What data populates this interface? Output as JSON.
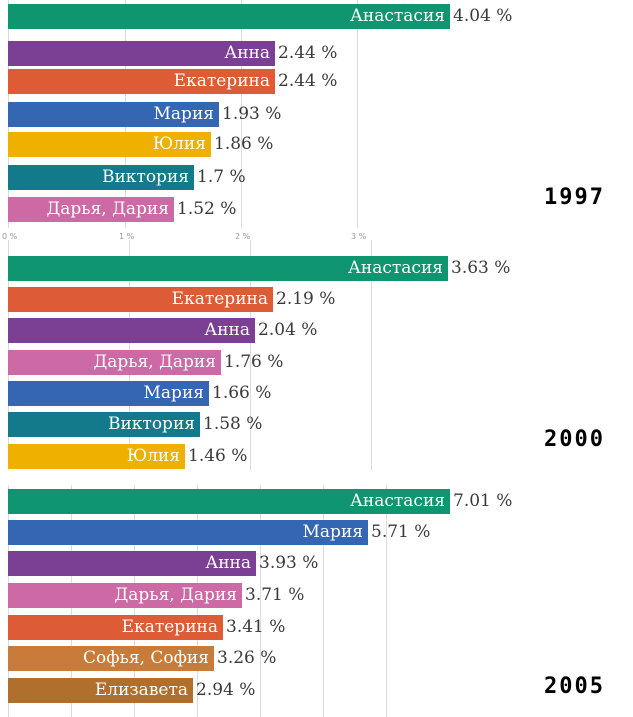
{
  "chart_data": [
    {
      "type": "bar",
      "orientation": "horizontal",
      "year_label": "1997",
      "unit": "%",
      "xlim": [
        0,
        4.04
      ],
      "categories": [
        "Анастасия",
        "Анна",
        "Екатерина",
        "Мария",
        "Юлия",
        "Виктория",
        "Дарья, Дария"
      ],
      "values": [
        4.04,
        2.44,
        2.44,
        1.93,
        1.86,
        1.7,
        1.52
      ],
      "value_labels": [
        "4.04 %",
        "2.44 %",
        "2.44 %",
        "1.93 %",
        "1.86 %",
        "1.7 %",
        "1.52 %"
      ],
      "colors": [
        "#0f9670",
        "#7b3f94",
        "#dd5b35",
        "#3466b3",
        "#f0b000",
        "#127a8a",
        "#cd6aa5"
      ],
      "axis_ticks": [
        {
          "value": 0,
          "label": "0 %"
        },
        {
          "value": 1,
          "label": "1 %"
        },
        {
          "value": 2,
          "label": "2 %"
        },
        {
          "value": 3,
          "label": "3 %"
        }
      ]
    },
    {
      "type": "bar",
      "orientation": "horizontal",
      "year_label": "2000",
      "unit": "%",
      "xlim": [
        0,
        3.63
      ],
      "categories": [
        "Анастасия",
        "Екатерина",
        "Анна",
        "Дарья, Дария",
        "Мария",
        "Виктория",
        "Юлия"
      ],
      "values": [
        3.63,
        2.19,
        2.04,
        1.76,
        1.66,
        1.58,
        1.46
      ],
      "value_labels": [
        "3.63 %",
        "2.19 %",
        "2.04 %",
        "1.76 %",
        "1.66 %",
        "1.58 %",
        "1.46 %"
      ],
      "colors": [
        "#0f9670",
        "#dd5b35",
        "#7b3f94",
        "#cd6aa5",
        "#3466b3",
        "#127a8a",
        "#f0b000"
      ]
    },
    {
      "type": "bar",
      "orientation": "horizontal",
      "year_label": "2005",
      "unit": "%",
      "xlim": [
        0,
        7.01
      ],
      "categories": [
        "Анастасия",
        "Мария",
        "Анна",
        "Дарья, Дария",
        "Екатерина",
        "Софья, София",
        "Елизавета"
      ],
      "values": [
        7.01,
        5.71,
        3.93,
        3.71,
        3.41,
        3.26,
        2.94
      ],
      "value_labels": [
        "7.01 %",
        "5.71 %",
        "3.93 %",
        "3.71 %",
        "3.41 %",
        "3.26 %",
        "2.94 %"
      ],
      "colors": [
        "#0f9670",
        "#3466b3",
        "#7b3f94",
        "#cd6aa5",
        "#dd5b35",
        "#c97c3a",
        "#b06f2c"
      ]
    }
  ]
}
